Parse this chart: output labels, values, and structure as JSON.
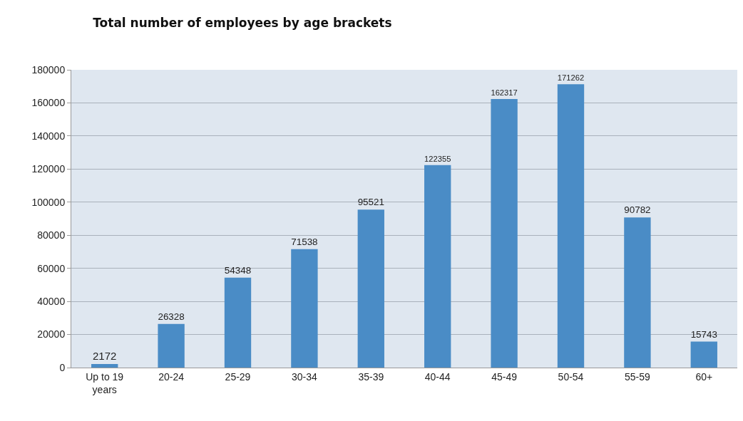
{
  "chart_data": {
    "type": "bar",
    "title": "Total number of employees by age brackets",
    "categories": [
      "Up to 19 years",
      "20-24",
      "25-29",
      "30-34",
      "35-39",
      "40-44",
      "45-49",
      "50-54",
      "55-59",
      "60+"
    ],
    "values": [
      2172,
      26328,
      54348,
      71538,
      95521,
      122355,
      162317,
      171262,
      90782,
      15743
    ],
    "color": "#4a8cc6",
    "ylim": [
      0,
      180000
    ],
    "yticks": [
      0,
      20000,
      40000,
      60000,
      80000,
      100000,
      120000,
      140000,
      160000,
      180000
    ],
    "grid": "y",
    "data_labels": true,
    "legend": false
  }
}
